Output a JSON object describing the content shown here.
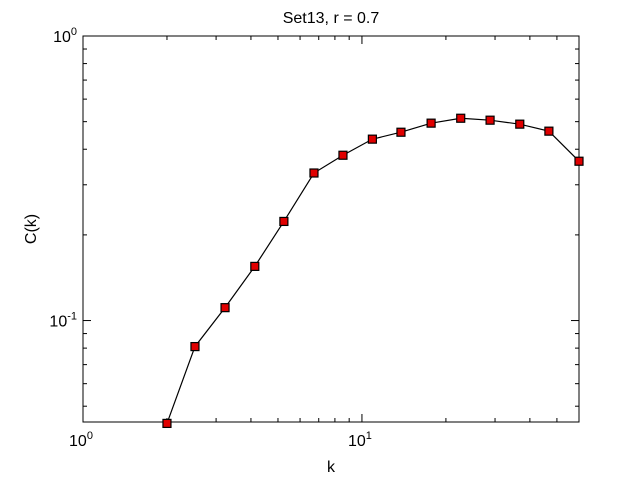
{
  "chart_data": {
    "type": "line",
    "title": "Set13, r = 0.7",
    "xlabel": "k",
    "ylabel": "C(k)",
    "xscale": "log",
    "yscale": "log",
    "xlim": [
      1,
      60
    ],
    "ylim": [
      0.044,
      1
    ],
    "xticks": [
      {
        "value": 1,
        "label": "10^0"
      },
      {
        "value": 10,
        "label": "10^1"
      }
    ],
    "yticks": [
      {
        "value": 0.1,
        "label": "10^-1"
      },
      {
        "value": 1,
        "label": "10^0"
      }
    ],
    "x": [
      2,
      2.52,
      3.23,
      4.13,
      5.25,
      6.73,
      8.55,
      10.9,
      13.8,
      17.7,
      22.6,
      28.8,
      36.8,
      46.8,
      60
    ],
    "series": [
      {
        "color": "#000000",
        "marker_color": "#e00000",
        "values": [
          0.0435,
          0.081,
          0.111,
          0.155,
          0.223,
          0.33,
          0.381,
          0.434,
          0.459,
          0.494,
          0.514,
          0.506,
          0.49,
          0.463,
          0.363
        ]
      }
    ]
  }
}
